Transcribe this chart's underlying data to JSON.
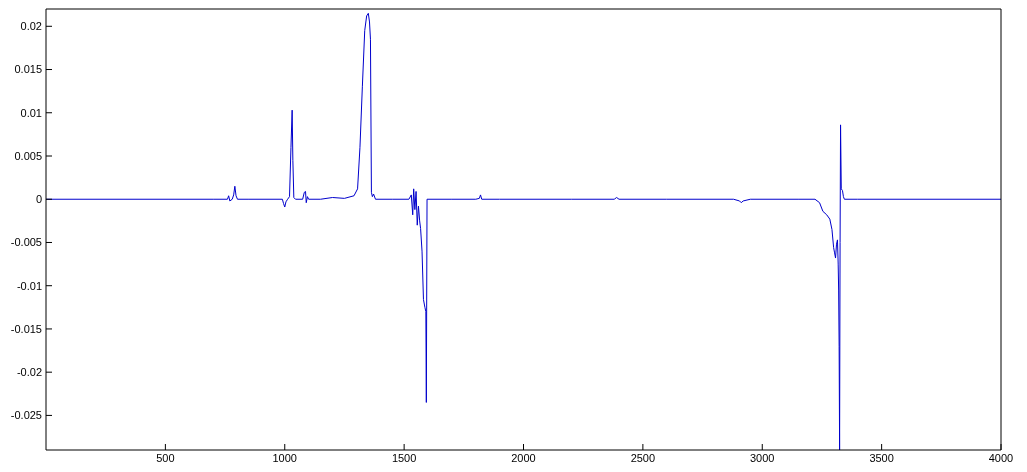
{
  "chart_data": {
    "type": "line",
    "xlim": [
      0,
      4000
    ],
    "xticks": [
      500,
      1000,
      1500,
      2000,
      2500,
      3000,
      3500,
      4000
    ],
    "ylim": [
      -0.029,
      0.022
    ],
    "yticks": [
      -0.025,
      -0.02,
      -0.015,
      -0.01,
      -0.005,
      0,
      0.005,
      0.01,
      0.015,
      0.02
    ],
    "marker": "none",
    "line_style": "solid",
    "series": [
      {
        "color": "#0000cc",
        "x": [
          0,
          700,
          760,
          765,
          770,
          780,
          786,
          791,
          796,
          802,
          850,
          990,
          995,
          1000,
          1005,
          1012,
          1020,
          1026,
          1031,
          1034,
          1038,
          1045,
          1075,
          1082,
          1087,
          1090,
          1095,
          1100,
          1150,
          1200,
          1250,
          1290,
          1305,
          1315,
          1325,
          1335,
          1343,
          1350,
          1355,
          1359,
          1363,
          1367,
          1372,
          1380,
          1450,
          1520,
          1530,
          1536,
          1540,
          1545,
          1550,
          1555,
          1560,
          1565,
          1569,
          1575,
          1581,
          1587,
          1591,
          1593,
          1596,
          1600,
          1700,
          1800,
          1815,
          1820,
          1825,
          1900,
          2200,
          2380,
          2390,
          2400,
          2600,
          2880,
          2905,
          2912,
          2920,
          2950,
          3150,
          3221,
          3240,
          3254,
          3270,
          3283,
          3292,
          3299,
          3303,
          3307,
          3311,
          3315,
          3318,
          3320,
          3322,
          3324,
          3326,
          3328,
          3331,
          3336,
          3340,
          3344,
          3400,
          4000
        ],
        "values": [
          0,
          0,
          0,
          0.0004,
          -0.0002,
          0,
          0.0005,
          0.0015,
          0.0004,
          0,
          0,
          0,
          -0.0005,
          -0.0009,
          -0.0003,
          0,
          0.0003,
          0.006,
          0.0103,
          0.0045,
          0.0002,
          0,
          0,
          0.0008,
          0.0009,
          -0.0004,
          0.0003,
          0,
          0,
          0.0002,
          0.0001,
          0.0004,
          0.0012,
          0.006,
          0.013,
          0.0195,
          0.0212,
          0.0215,
          0.0205,
          0.0185,
          0.0008,
          0.0003,
          0.0006,
          0,
          0,
          0,
          0.0005,
          -0.0018,
          0.0012,
          -0.0012,
          0.0009,
          -0.003,
          -0.0008,
          -0.0025,
          -0.0034,
          -0.006,
          -0.0116,
          -0.0125,
          -0.013,
          -0.0235,
          0,
          0,
          0,
          0,
          0.0001,
          0.0005,
          0,
          0,
          0,
          0,
          0.0002,
          0,
          0,
          0,
          -0.0002,
          -0.0004,
          -0.0002,
          0,
          0,
          0,
          -0.0004,
          -0.0014,
          -0.0018,
          -0.0023,
          -0.0035,
          -0.0056,
          -0.0062,
          -0.0068,
          -0.0052,
          -0.0047,
          -0.0075,
          -0.0105,
          -0.017,
          -0.029,
          -0.005,
          0.0086,
          0.0012,
          0.001,
          0.0003,
          0,
          0,
          0
        ]
      }
    ]
  }
}
